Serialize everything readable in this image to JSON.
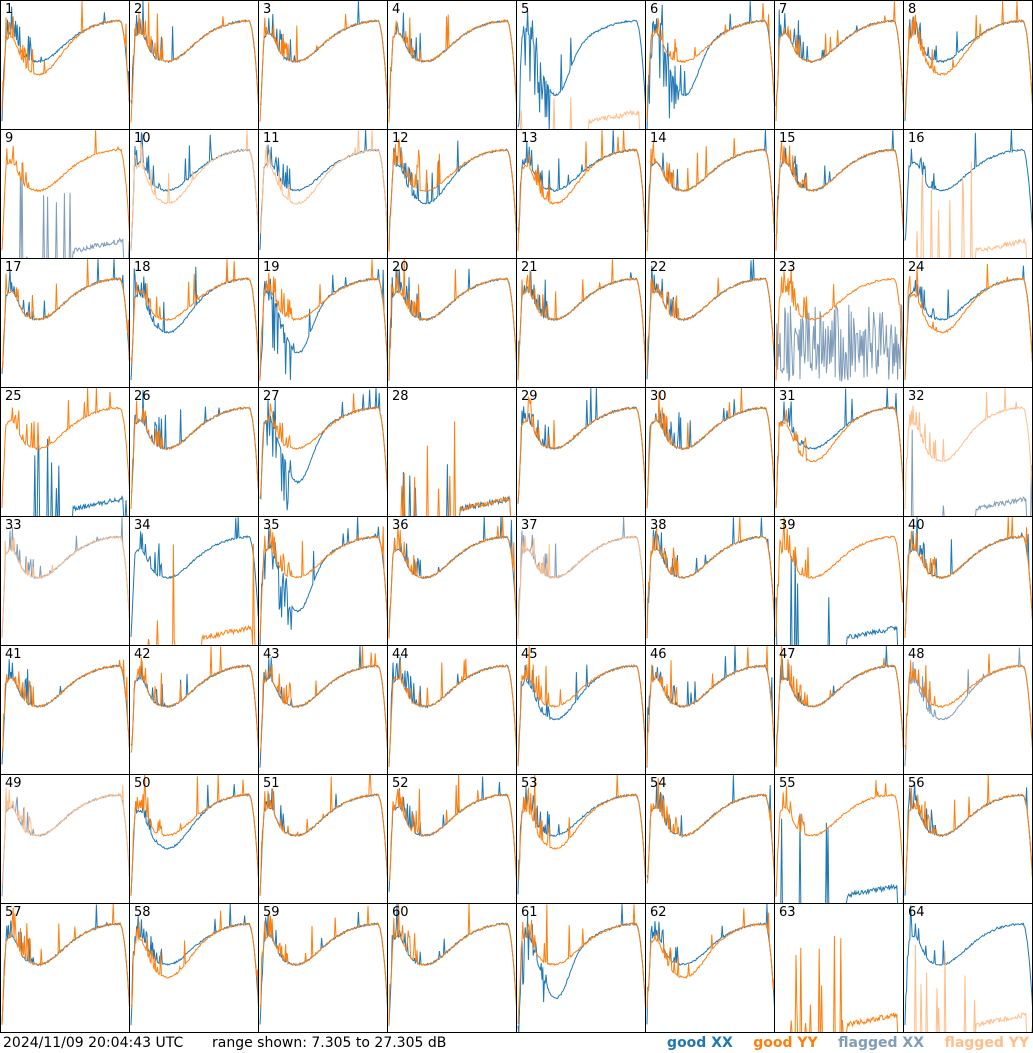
{
  "footer": {
    "timestamp": "2024/11/09 20:04:43 UTC",
    "range_text": "range shown: 7.305 to 27.305 dB"
  },
  "legend": [
    {
      "label": "good XX",
      "color": "#1f77b4"
    },
    {
      "label": "good YY",
      "color": "#ff7f0e"
    },
    {
      "label": "flagged XX",
      "color": "#7f9cb8"
    },
    {
      "label": "flagged YY",
      "color": "#ffbe8a"
    }
  ],
  "chart_data": {
    "type": "line",
    "xlabel": "",
    "ylabel": "",
    "ylim": [
      7.305,
      27.305
    ],
    "grid": false,
    "legend_placement": "bottom-right",
    "panels": [
      {
        "id": 1,
        "xx": "good",
        "yy": "good",
        "xx_shape": "normal",
        "yy_shape": "lowdip"
      },
      {
        "id": 2,
        "xx": "good",
        "yy": "good",
        "xx_shape": "normal",
        "yy_shape": "normal"
      },
      {
        "id": 3,
        "xx": "good",
        "yy": "good",
        "xx_shape": "normal",
        "yy_shape": "normal"
      },
      {
        "id": 4,
        "xx": "good",
        "yy": "good",
        "xx_shape": "normal",
        "yy_shape": "normal"
      },
      {
        "id": 5,
        "xx": "good",
        "yy": "flagged",
        "xx_shape": "deepdip",
        "yy_shape": "dead"
      },
      {
        "id": 6,
        "xx": "good",
        "yy": "good",
        "xx_shape": "deepdip",
        "yy_shape": "normal"
      },
      {
        "id": 7,
        "xx": "good",
        "yy": "good",
        "xx_shape": "normal",
        "yy_shape": "normal"
      },
      {
        "id": 8,
        "xx": "good",
        "yy": "good",
        "xx_shape": "normal",
        "yy_shape": "lowdip"
      },
      {
        "id": 9,
        "xx": "flagged",
        "yy": "good",
        "xx_shape": "dead",
        "yy_shape": "normal"
      },
      {
        "id": 10,
        "xx": "good",
        "yy": "flagged",
        "xx_shape": "normal",
        "yy_shape": "lowdip"
      },
      {
        "id": 11,
        "xx": "good",
        "yy": "flagged",
        "xx_shape": "normal",
        "yy_shape": "lowdip"
      },
      {
        "id": 12,
        "xx": "good",
        "yy": "good",
        "xx_shape": "lowdip",
        "yy_shape": "normal"
      },
      {
        "id": 13,
        "xx": "good",
        "yy": "good",
        "xx_shape": "normal",
        "yy_shape": "lowdip"
      },
      {
        "id": 14,
        "xx": "good",
        "yy": "good",
        "xx_shape": "normal",
        "yy_shape": "normal"
      },
      {
        "id": 15,
        "xx": "good",
        "yy": "good",
        "xx_shape": "normal",
        "yy_shape": "normal"
      },
      {
        "id": 16,
        "xx": "good",
        "yy": "flagged",
        "xx_shape": "normal",
        "yy_shape": "dead"
      },
      {
        "id": 17,
        "xx": "good",
        "yy": "good",
        "xx_shape": "normal",
        "yy_shape": "normal"
      },
      {
        "id": 18,
        "xx": "good",
        "yy": "good",
        "xx_shape": "lowdip",
        "yy_shape": "normal"
      },
      {
        "id": 19,
        "xx": "good",
        "yy": "good",
        "xx_shape": "deepdip",
        "yy_shape": "normal"
      },
      {
        "id": 20,
        "xx": "good",
        "yy": "good",
        "xx_shape": "normal",
        "yy_shape": "normal"
      },
      {
        "id": 21,
        "xx": "good",
        "yy": "good",
        "xx_shape": "normal",
        "yy_shape": "normal"
      },
      {
        "id": 22,
        "xx": "good",
        "yy": "good",
        "xx_shape": "normal",
        "yy_shape": "normal"
      },
      {
        "id": 23,
        "xx": "flagged",
        "yy": "good",
        "xx_shape": "noisy",
        "yy_shape": "normal"
      },
      {
        "id": 24,
        "xx": "good",
        "yy": "good",
        "xx_shape": "normal",
        "yy_shape": "lowdip"
      },
      {
        "id": 25,
        "xx": "good",
        "yy": "good",
        "xx_shape": "dead",
        "yy_shape": "normal"
      },
      {
        "id": 26,
        "xx": "good",
        "yy": "good",
        "xx_shape": "normal",
        "yy_shape": "normal"
      },
      {
        "id": 27,
        "xx": "good",
        "yy": "good",
        "xx_shape": "deepdip",
        "yy_shape": "normal"
      },
      {
        "id": 28,
        "xx": "good",
        "yy": "good",
        "xx_shape": "dead",
        "yy_shape": "dead"
      },
      {
        "id": 29,
        "xx": "good",
        "yy": "good",
        "xx_shape": "normal",
        "yy_shape": "normal"
      },
      {
        "id": 30,
        "xx": "good",
        "yy": "good",
        "xx_shape": "normal",
        "yy_shape": "normal"
      },
      {
        "id": 31,
        "xx": "good",
        "yy": "good",
        "xx_shape": "normal",
        "yy_shape": "lowdip"
      },
      {
        "id": 32,
        "xx": "flagged",
        "yy": "flagged",
        "xx_shape": "dead",
        "yy_shape": "lowdip"
      },
      {
        "id": 33,
        "xx": "flagged",
        "yy": "flagged",
        "xx_shape": "normal",
        "yy_shape": "normal"
      },
      {
        "id": 34,
        "xx": "good",
        "yy": "good",
        "xx_shape": "normal",
        "yy_shape": "dead"
      },
      {
        "id": 35,
        "xx": "good",
        "yy": "good",
        "xx_shape": "deepdip",
        "yy_shape": "normal"
      },
      {
        "id": 36,
        "xx": "good",
        "yy": "good",
        "xx_shape": "normal",
        "yy_shape": "normal"
      },
      {
        "id": 37,
        "xx": "flagged",
        "yy": "flagged",
        "xx_shape": "normal",
        "yy_shape": "normal"
      },
      {
        "id": 38,
        "xx": "good",
        "yy": "good",
        "xx_shape": "normal",
        "yy_shape": "normal"
      },
      {
        "id": 39,
        "xx": "good",
        "yy": "good",
        "xx_shape": "dead",
        "yy_shape": "normal"
      },
      {
        "id": 40,
        "xx": "good",
        "yy": "good",
        "xx_shape": "normal",
        "yy_shape": "normal"
      },
      {
        "id": 41,
        "xx": "good",
        "yy": "good",
        "xx_shape": "normal",
        "yy_shape": "normal"
      },
      {
        "id": 42,
        "xx": "good",
        "yy": "good",
        "xx_shape": "normal",
        "yy_shape": "normal"
      },
      {
        "id": 43,
        "xx": "good",
        "yy": "good",
        "xx_shape": "normal",
        "yy_shape": "normal"
      },
      {
        "id": 44,
        "xx": "good",
        "yy": "good",
        "xx_shape": "normal",
        "yy_shape": "normal"
      },
      {
        "id": 45,
        "xx": "good",
        "yy": "good",
        "xx_shape": "lowdip",
        "yy_shape": "normal"
      },
      {
        "id": 46,
        "xx": "good",
        "yy": "good",
        "xx_shape": "normal",
        "yy_shape": "normal"
      },
      {
        "id": 47,
        "xx": "good",
        "yy": "good",
        "xx_shape": "normal",
        "yy_shape": "normal"
      },
      {
        "id": 48,
        "xx": "flagged",
        "yy": "good",
        "xx_shape": "lowdip",
        "yy_shape": "normal"
      },
      {
        "id": 49,
        "xx": "flagged",
        "yy": "flagged",
        "xx_shape": "normal",
        "yy_shape": "normal"
      },
      {
        "id": 50,
        "xx": "good",
        "yy": "good",
        "xx_shape": "lowdip",
        "yy_shape": "normal"
      },
      {
        "id": 51,
        "xx": "good",
        "yy": "good",
        "xx_shape": "normal",
        "yy_shape": "normal"
      },
      {
        "id": 52,
        "xx": "good",
        "yy": "good",
        "xx_shape": "normal",
        "yy_shape": "normal"
      },
      {
        "id": 53,
        "xx": "good",
        "yy": "good",
        "xx_shape": "normal",
        "yy_shape": "lowdip"
      },
      {
        "id": 54,
        "xx": "good",
        "yy": "good",
        "xx_shape": "normal",
        "yy_shape": "normal"
      },
      {
        "id": 55,
        "xx": "good",
        "yy": "good",
        "xx_shape": "dead",
        "yy_shape": "normal"
      },
      {
        "id": 56,
        "xx": "good",
        "yy": "good",
        "xx_shape": "normal",
        "yy_shape": "normal"
      },
      {
        "id": 57,
        "xx": "good",
        "yy": "good",
        "xx_shape": "normal",
        "yy_shape": "normal"
      },
      {
        "id": 58,
        "xx": "good",
        "yy": "good",
        "xx_shape": "normal",
        "yy_shape": "lowdip"
      },
      {
        "id": 59,
        "xx": "good",
        "yy": "good",
        "xx_shape": "normal",
        "yy_shape": "normal"
      },
      {
        "id": 60,
        "xx": "good",
        "yy": "good",
        "xx_shape": "normal",
        "yy_shape": "normal"
      },
      {
        "id": 61,
        "xx": "good",
        "yy": "good",
        "xx_shape": "deepdip",
        "yy_shape": "normal"
      },
      {
        "id": 62,
        "xx": "good",
        "yy": "good",
        "xx_shape": "normal",
        "yy_shape": "lowdip"
      },
      {
        "id": 63,
        "xx": "good",
        "yy": "good",
        "xx_shape": "none",
        "yy_shape": "dead"
      },
      {
        "id": 64,
        "xx": "good",
        "yy": "flagged",
        "xx_shape": "normal",
        "yy_shape": "dead"
      }
    ]
  }
}
